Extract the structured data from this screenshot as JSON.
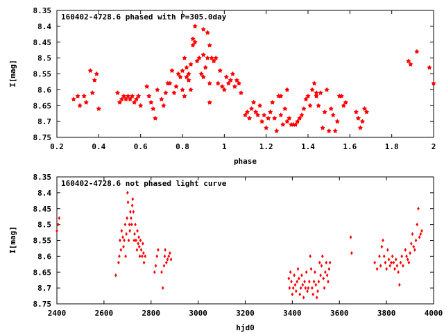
{
  "chart_data": [
    {
      "type": "scatter",
      "title": "160402-4728.6 phased with P=305.0day",
      "xlabel": "phase",
      "ylabel": "I[mag]",
      "xlim": [
        0.2,
        2.0
      ],
      "ylim": [
        8.75,
        8.35
      ],
      "y_inverted": true,
      "xticks": [
        "0.2",
        "0.4",
        "0.6",
        "0.8",
        "1",
        "1.2",
        "1.4",
        "1.6",
        "1.8",
        "2"
      ],
      "yticks": [
        "8.35",
        "8.4",
        "8.45",
        "8.5",
        "8.55",
        "8.6",
        "8.65",
        "8.7",
        "8.75"
      ],
      "marker": "filled-star",
      "color": "#ff0000",
      "series": [
        {
          "x": [
            0.28,
            0.3,
            0.31,
            0.33,
            0.34,
            0.36,
            0.37,
            0.38,
            0.39,
            0.4,
            0.49,
            0.5,
            0.51,
            0.52,
            0.53,
            0.54,
            0.55,
            0.56,
            0.57,
            0.58,
            0.59,
            0.6,
            0.63,
            0.64,
            0.65,
            0.66,
            0.67,
            0.68,
            0.7,
            0.71,
            0.72,
            0.73,
            0.74,
            0.75,
            0.76,
            0.77,
            0.78,
            0.79,
            0.8,
            0.8,
            0.81,
            0.81,
            0.82,
            0.82,
            0.83,
            0.83,
            0.84,
            0.84,
            0.85,
            0.86,
            0.87,
            0.88,
            0.89,
            0.9,
            0.9,
            0.91,
            0.92,
            0.92,
            0.93,
            0.93,
            0.94,
            0.95,
            0.96,
            0.97,
            0.98,
            0.99,
            1.0,
            1.01,
            1.02,
            1.03,
            1.04,
            1.05,
            1.06,
            1.07,
            1.08,
            1.1,
            1.11,
            1.12,
            1.13,
            1.14,
            1.15,
            1.16,
            1.17,
            1.18,
            1.19,
            1.2,
            1.21,
            1.22,
            1.23,
            1.24,
            1.25,
            1.26,
            1.27,
            1.28,
            1.29,
            1.3,
            1.31,
            1.32,
            1.33,
            1.34,
            1.35,
            1.36,
            1.37,
            1.38,
            1.39,
            1.4,
            1.41,
            1.42,
            1.43,
            1.44,
            1.45,
            1.46,
            1.47,
            1.48,
            1.49,
            1.5,
            1.51,
            1.52,
            1.53,
            1.54,
            1.55,
            1.56,
            1.57,
            1.58,
            1.63,
            1.64,
            1.65,
            1.66,
            1.67,
            1.68,
            1.88,
            1.89,
            1.92,
            1.98,
            2.0,
            0.93,
            0.85,
            0.9,
            0.86,
            1.27,
            1.3,
            1.44
          ],
          "y": [
            8.63,
            8.62,
            8.65,
            8.62,
            8.64,
            8.54,
            8.61,
            8.57,
            8.55,
            8.66,
            8.61,
            8.64,
            8.63,
            8.62,
            8.63,
            8.62,
            8.63,
            8.62,
            8.64,
            8.63,
            8.62,
            8.65,
            8.59,
            8.62,
            8.64,
            8.66,
            8.69,
            8.6,
            8.63,
            8.65,
            8.61,
            8.58,
            8.58,
            8.54,
            8.61,
            8.59,
            8.55,
            8.56,
            8.6,
            8.54,
            8.5,
            8.62,
            8.56,
            8.53,
            8.55,
            8.57,
            8.52,
            8.6,
            8.46,
            8.4,
            8.51,
            8.5,
            8.55,
            8.49,
            8.56,
            8.53,
            8.42,
            8.5,
            8.46,
            8.64,
            8.5,
            8.51,
            8.5,
            8.58,
            8.54,
            8.59,
            8.6,
            8.56,
            8.58,
            8.57,
            8.55,
            8.59,
            8.57,
            8.58,
            8.61,
            8.68,
            8.67,
            8.69,
            8.66,
            8.64,
            8.67,
            8.68,
            8.65,
            8.7,
            8.68,
            8.72,
            8.69,
            8.67,
            8.64,
            8.69,
            8.73,
            8.62,
            8.68,
            8.71,
            8.66,
            8.7,
            8.69,
            8.71,
            8.71,
            8.71,
            8.7,
            8.69,
            8.68,
            8.66,
            8.63,
            8.62,
            8.65,
            8.6,
            8.58,
            8.62,
            8.65,
            8.61,
            8.72,
            8.67,
            8.6,
            8.73,
            8.66,
            8.68,
            8.73,
            8.7,
            8.62,
            8.62,
            8.65,
            8.64,
            8.67,
            8.69,
            8.72,
            8.7,
            8.66,
            8.67,
            8.51,
            8.52,
            8.48,
            8.53,
            8.58,
            8.58,
            8.44,
            8.41,
            8.45,
            8.62,
            8.6,
            8.61
          ],
          "name": ""
        }
      ]
    },
    {
      "type": "scatter",
      "title": "160402-4728.6 not phased light curve",
      "xlabel": "hjd0",
      "ylabel": "I[mag]",
      "xlim": [
        2400,
        4000
      ],
      "ylim": [
        8.75,
        8.35
      ],
      "y_inverted": true,
      "xticks": [
        "2400",
        "2600",
        "2800",
        "3000",
        "3200",
        "3400",
        "3600",
        "3800",
        "4000"
      ],
      "yticks": [
        "8.35",
        "8.4",
        "8.45",
        "8.5",
        "8.55",
        "8.6",
        "8.65",
        "8.7",
        "8.75"
      ],
      "marker": "small-diamond",
      "color": "#ff0000",
      "series": [
        {
          "x": [
            2400,
            2405,
            2410,
            2650,
            2662,
            2665,
            2668,
            2672,
            2675,
            2680,
            2683,
            2686,
            2690,
            2692,
            2695,
            2698,
            2700,
            2702,
            2705,
            2708,
            2710,
            2712,
            2715,
            2718,
            2720,
            2722,
            2725,
            2728,
            2730,
            2733,
            2736,
            2740,
            2742,
            2745,
            2748,
            2750,
            2752,
            2755,
            2758,
            2762,
            2765,
            2768,
            2770,
            2775,
            2815,
            2820,
            2825,
            2830,
            2845,
            2850,
            2855,
            2858,
            2860,
            2865,
            2870,
            2875,
            2880,
            2885,
            3385,
            3388,
            3392,
            3396,
            3400,
            3404,
            3408,
            3412,
            3416,
            3420,
            3424,
            3428,
            3432,
            3436,
            3440,
            3444,
            3448,
            3452,
            3456,
            3460,
            3464,
            3468,
            3472,
            3476,
            3480,
            3484,
            3488,
            3492,
            3496,
            3500,
            3504,
            3508,
            3512,
            3516,
            3520,
            3524,
            3528,
            3532,
            3536,
            3540,
            3544,
            3548,
            3552,
            3556,
            3560,
            3648,
            3652,
            3750,
            3760,
            3770,
            3775,
            3780,
            3785,
            3790,
            3795,
            3800,
            3805,
            3810,
            3815,
            3820,
            3825,
            3830,
            3835,
            3840,
            3845,
            3850,
            3855,
            3860,
            3865,
            3870,
            3880,
            3885,
            3890,
            3895,
            3900,
            3905,
            3910,
            3915,
            3920,
            3925,
            3930,
            3935,
            3940,
            3945,
            3950
          ],
          "y": [
            8.52,
            8.5,
            8.48,
            8.66,
            8.62,
            8.6,
            8.55,
            8.58,
            8.52,
            8.54,
            8.57,
            8.55,
            8.5,
            8.6,
            8.53,
            8.48,
            8.4,
            8.43,
            8.55,
            8.5,
            8.52,
            8.46,
            8.48,
            8.5,
            8.44,
            8.42,
            8.46,
            8.55,
            8.53,
            8.5,
            8.55,
            8.58,
            8.52,
            8.56,
            8.54,
            8.57,
            8.6,
            8.55,
            8.58,
            8.6,
            8.56,
            8.59,
            8.62,
            8.6,
            8.65,
            8.63,
            8.6,
            8.58,
            8.65,
            8.7,
            8.63,
            8.6,
            8.58,
            8.62,
            8.61,
            8.6,
            8.59,
            8.61,
            8.67,
            8.7,
            8.65,
            8.68,
            8.72,
            8.7,
            8.66,
            8.69,
            8.71,
            8.68,
            8.64,
            8.67,
            8.72,
            8.7,
            8.66,
            8.69,
            8.73,
            8.68,
            8.7,
            8.65,
            8.71,
            8.7,
            8.68,
            8.6,
            8.64,
            8.7,
            8.72,
            8.68,
            8.65,
            8.69,
            8.73,
            8.71,
            8.68,
            8.62,
            8.66,
            8.63,
            8.6,
            8.67,
            8.7,
            8.65,
            8.62,
            8.66,
            8.68,
            8.64,
            8.62,
            8.54,
            8.59,
            8.62,
            8.64,
            8.6,
            8.63,
            8.57,
            8.55,
            8.6,
            8.62,
            8.64,
            8.58,
            8.61,
            8.63,
            8.62,
            8.6,
            8.62,
            8.64,
            8.61,
            8.63,
            8.65,
            8.69,
            8.62,
            8.6,
            8.63,
            8.58,
            8.6,
            8.61,
            8.62,
            8.59,
            8.56,
            8.53,
            8.57,
            8.58,
            8.55,
            8.5,
            8.45,
            8.54,
            8.53,
            8.52
          ],
          "name": ""
        }
      ]
    }
  ]
}
